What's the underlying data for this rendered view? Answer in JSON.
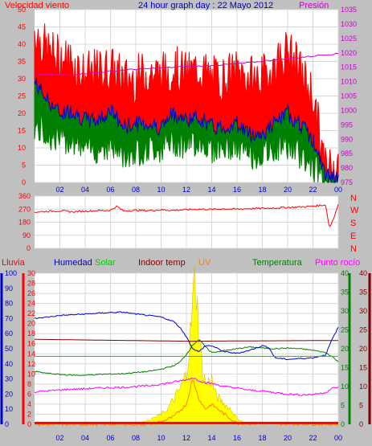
{
  "header": {
    "title": "24 hour graph day : 22 Mayo 2012",
    "wind_label": "Velocidad viento",
    "pressure_label": "Presión"
  },
  "colors": {
    "background": "#c0c0c0",
    "plot_bg": "#ffffff",
    "wind_speed": "#ff0000",
    "wind_avg": "#0000cc",
    "wind_min": "#008000",
    "pressure": "#cc00cc",
    "direction": "#ff0000",
    "humidity": "#0000cc",
    "solar": "#ffff00",
    "solar_edge": "#d4b000",
    "indoor_temp": "#800000",
    "uv": "#ff8000",
    "temperature": "#008000",
    "dewpoint": "#ff00ff",
    "rain": "#ff0000",
    "title": "#0000cc",
    "red_text": "#ff0000",
    "green_text": "#00cc00",
    "axis_blue": "#0000cc",
    "axis_red": "#ff0000",
    "axis_green": "#008000",
    "axis_dark_red": "#800000",
    "axis_magenta": "#cc00cc"
  },
  "bottom_labels": {
    "rain": "Lluvia",
    "humidity": "Humedad",
    "solar": "Solar",
    "indoor_temp": "Indoor temp",
    "uv": "UV",
    "temperature": "Temperatura",
    "dewpoint": "Punto rocío"
  },
  "direction_letters": [
    "N",
    "W",
    "S",
    "E",
    "N"
  ],
  "chart_data": [
    {
      "type": "line",
      "x_ticks": [
        "02",
        "04",
        "06",
        "08",
        "10",
        "12",
        "14",
        "16",
        "18",
        "20",
        "22",
        "00"
      ],
      "y_left_ticks": [
        "0",
        "5",
        "10",
        "15",
        "20",
        "25",
        "30",
        "35",
        "40",
        "45",
        "50"
      ],
      "y_right_ticks": [
        "975",
        "980",
        "985",
        "990",
        "995",
        "1000",
        "1005",
        "1010",
        "1015",
        "1020",
        "1025",
        "1030",
        "1035"
      ],
      "ylim": [
        0,
        50
      ],
      "y2lim": [
        975,
        1035
      ],
      "grid": true,
      "series": [
        {
          "name": "Velocidad viento",
          "axis": "left",
          "style": "gust-bars",
          "x": [
            0,
            1,
            2,
            3,
            4,
            5,
            6,
            7,
            8,
            9,
            10,
            11,
            12,
            13,
            14,
            15,
            16,
            17,
            18,
            19,
            20,
            21,
            22,
            23,
            24
          ],
          "values": [
            44,
            38,
            36,
            35,
            31,
            32,
            33,
            30,
            30,
            32,
            31,
            33,
            31,
            33,
            30,
            30,
            32,
            30,
            30,
            34,
            38,
            32,
            25,
            4,
            7
          ]
        },
        {
          "name": "Average",
          "axis": "left",
          "style": "line",
          "x": [
            0,
            1,
            2,
            3,
            4,
            5,
            6,
            7,
            8,
            9,
            10,
            11,
            12,
            13,
            14,
            15,
            16,
            17,
            18,
            19,
            20,
            21,
            22,
            23,
            24
          ],
          "values": [
            29,
            24,
            20,
            21,
            18,
            18,
            21,
            16,
            17,
            17,
            16,
            20,
            18,
            19,
            16,
            16,
            17,
            14,
            14,
            17,
            20,
            17,
            12,
            2,
            1
          ]
        },
        {
          "name": "Minimum",
          "axis": "left",
          "style": "lull-bars",
          "x": [
            0,
            1,
            2,
            3,
            4,
            5,
            6,
            7,
            8,
            9,
            10,
            11,
            12,
            13,
            14,
            15,
            16,
            17,
            18,
            19,
            20,
            21,
            22,
            23,
            24
          ],
          "values": [
            16,
            14,
            12,
            13,
            9,
            10,
            11,
            8,
            9,
            10,
            10,
            12,
            11,
            12,
            10,
            10,
            10,
            8,
            8,
            10,
            11,
            8,
            5,
            0,
            0
          ]
        },
        {
          "name": "Presión",
          "axis": "right",
          "style": "line",
          "x": [
            0,
            1,
            2,
            3,
            4,
            5,
            6,
            7,
            8,
            9,
            10,
            11,
            12,
            13,
            14,
            15,
            16,
            17,
            18,
            19,
            20,
            21,
            22,
            23,
            24
          ],
          "values": [
            1012.8,
            1012.5,
            1012.3,
            1012.4,
            1012.9,
            1013.2,
            1013.6,
            1014.0,
            1014.3,
            1014.5,
            1014.8,
            1015.0,
            1015.2,
            1015.4,
            1015.6,
            1015.9,
            1016.2,
            1016.6,
            1017.1,
            1017.6,
            1018.0,
            1018.4,
            1018.9,
            1019.4,
            1019.7
          ]
        }
      ]
    },
    {
      "type": "line",
      "x_ticks": [
        "02",
        "04",
        "06",
        "08",
        "10",
        "12",
        "14",
        "16",
        "18",
        "20",
        "22",
        "00"
      ],
      "y_ticks": [
        "0",
        "90",
        "180",
        "270",
        "360"
      ],
      "ylim": [
        0,
        360
      ],
      "series": [
        {
          "name": "Dirección",
          "style": "line",
          "x": [
            0,
            1,
            2,
            3,
            4,
            5,
            6,
            6.5,
            7,
            8,
            9,
            10,
            11,
            12,
            13,
            14,
            15,
            16,
            17,
            18,
            19,
            20,
            21,
            22,
            23,
            23.3,
            23.6,
            24
          ],
          "values": [
            250,
            255,
            258,
            252,
            256,
            260,
            262,
            290,
            258,
            262,
            260,
            265,
            262,
            266,
            270,
            268,
            272,
            270,
            274,
            275,
            278,
            282,
            285,
            290,
            300,
            140,
            200,
            300
          ]
        }
      ]
    },
    {
      "type": "area",
      "x_ticks": [
        "02",
        "04",
        "06",
        "08",
        "10",
        "12",
        "14",
        "16",
        "18",
        "20",
        "22",
        "00"
      ],
      "y_humidity_ticks": [
        "0",
        "10",
        "20",
        "30",
        "40",
        "50",
        "60",
        "70",
        "80",
        "90",
        "100"
      ],
      "y_rain_ticks": [
        "0",
        "2",
        "4",
        "6",
        "8",
        "10",
        "12",
        "14",
        "16",
        "18",
        "20",
        "22",
        "24",
        "26",
        "28",
        "30"
      ],
      "y_temp_ticks": [
        "0",
        "5",
        "10",
        "15",
        "20",
        "25",
        "30",
        "35",
        "40"
      ],
      "y_dew_ticks": [
        "0",
        "5",
        "10",
        "15",
        "20",
        "25",
        "30",
        "35",
        "40"
      ],
      "humidity_lim": [
        0,
        100
      ],
      "rain_lim": [
        0,
        30
      ],
      "temp_lim": [
        0,
        40
      ],
      "grid": true,
      "series": [
        {
          "name": "Humedad",
          "axis": "humidity",
          "x": [
            0,
            1,
            2,
            3,
            4,
            5,
            6,
            7,
            8,
            9,
            10,
            11,
            11.5,
            12,
            12.5,
            13,
            13.5,
            14,
            15,
            16,
            17,
            18,
            18.5,
            19,
            20,
            21,
            22,
            23,
            23.5,
            24
          ],
          "values": [
            70,
            71,
            72,
            72.5,
            73,
            73.5,
            74,
            74.2,
            73,
            72,
            71,
            68,
            64,
            58,
            50,
            48,
            52,
            52,
            48,
            47,
            49,
            52,
            51,
            44,
            43,
            43.5,
            44,
            46,
            56,
            64
          ]
        },
        {
          "name": "Solar",
          "axis": "rain",
          "x": [
            0,
            5,
            6,
            7,
            8,
            9,
            10,
            10.5,
            11,
            11.5,
            12,
            12.3,
            12.5,
            12.7,
            13,
            13.3,
            13.6,
            14,
            14.3,
            14.6,
            15,
            15.5,
            16,
            16.5,
            17,
            18,
            19,
            20,
            21,
            22,
            24
          ],
          "values": [
            0,
            0,
            0,
            0,
            0.2,
            0.8,
            2,
            3,
            5,
            7,
            10,
            17,
            24,
            30,
            18,
            10,
            8,
            9,
            6,
            5,
            4,
            3,
            1.2,
            0.4,
            0.2,
            0.1,
            0.5,
            0.1,
            0.1,
            0,
            0
          ]
        },
        {
          "name": "UV",
          "axis": "rain",
          "x": [
            0,
            9,
            10,
            11,
            12,
            12.5,
            13,
            13.5,
            14,
            15,
            16,
            24
          ],
          "values": [
            0,
            0,
            0.5,
            1.5,
            4,
            9,
            5,
            3,
            4,
            2,
            0.2,
            0
          ]
        },
        {
          "name": "Indoor temp",
          "axis": "temp",
          "x": [
            0,
            12,
            24
          ],
          "values": [
            22.5,
            22.0,
            22.2
          ]
        },
        {
          "name": "Temperatura",
          "axis": "temp",
          "x": [
            0,
            1,
            2,
            3,
            4,
            5,
            6,
            7,
            8,
            9,
            10,
            11,
            11.5,
            12,
            12.5,
            13,
            13.5,
            14,
            15,
            16,
            17,
            18,
            19,
            20,
            21,
            22,
            23,
            23.5,
            24
          ],
          "values": [
            14,
            13.5,
            13.2,
            13.0,
            13.0,
            13.2,
            13.3,
            13.4,
            13.7,
            14.0,
            14.6,
            15.5,
            16.5,
            18.5,
            21,
            22.5,
            20.5,
            19.0,
            19.5,
            20,
            20.5,
            20.2,
            20,
            20.2,
            20,
            19.6,
            19,
            18,
            16.5
          ]
        },
        {
          "name": "Punto rocío",
          "axis": "temp",
          "x": [
            0,
            1,
            2,
            3,
            4,
            5,
            6,
            7,
            8,
            9,
            10,
            11,
            12,
            12.5,
            13,
            13.5,
            14,
            15,
            16,
            17,
            18,
            19,
            20,
            21,
            22,
            23,
            23.5,
            24
          ],
          "values": [
            8.6,
            8.8,
            9.1,
            9.3,
            9.4,
            9.6,
            9.7,
            9.8,
            10,
            10.2,
            10.6,
            11.2,
            11.8,
            12.3,
            11.6,
            11.0,
            10.8,
            10.0,
            9.6,
            9.0,
            8.8,
            8.4,
            8.0,
            7.8,
            7.9,
            8.4,
            9.5,
            9.8
          ]
        },
        {
          "name": "Lluvia",
          "axis": "rain",
          "x": [
            0,
            24
          ],
          "values": [
            0.1,
            0.1
          ]
        }
      ]
    }
  ]
}
